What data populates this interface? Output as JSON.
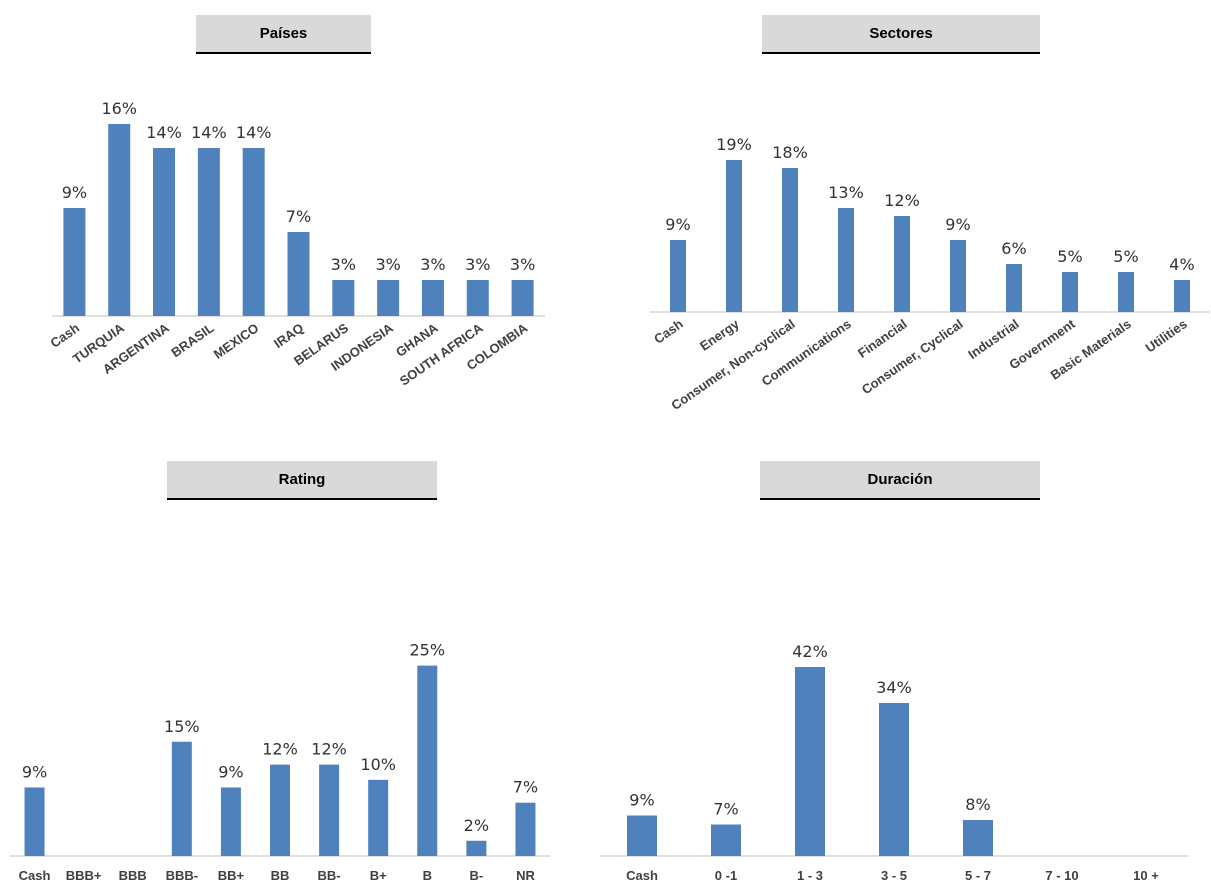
{
  "colors": {
    "bar": "#4f81bd",
    "axis": "#bfbfbf",
    "title_bg": "#d9d9d9"
  },
  "chart_data": [
    {
      "type": "bar",
      "title": "Países",
      "categories": [
        "Cash",
        "TURQUIA",
        "ARGENTINA",
        "BRASIL",
        "MEXICO",
        "IRAQ",
        "BELARUS",
        "INDONESIA",
        "GHANA",
        "SOUTH AFRICA",
        "COLOMBIA"
      ],
      "values": [
        9,
        16,
        14,
        14,
        14,
        7,
        3,
        3,
        3,
        3,
        3
      ],
      "labels": [
        "9%",
        "16%",
        "14%",
        "14%",
        "14%",
        "7%",
        "3%",
        "3%",
        "3%",
        "3%",
        "3%"
      ],
      "ylim": [
        0,
        17
      ],
      "grid": false,
      "legend": "none"
    },
    {
      "type": "bar",
      "title": "Sectores",
      "categories": [
        "Cash",
        "Energy",
        "Consumer, Non-cyclical",
        "Communications",
        "Financial",
        "Consumer, Cyclical",
        "Industrial",
        "Government",
        "Basic Materials",
        "Utilities"
      ],
      "values": [
        9,
        19,
        18,
        13,
        12,
        9,
        6,
        5,
        5,
        4
      ],
      "labels": [
        "9%",
        "19%",
        "18%",
        "13%",
        "12%",
        "9%",
        "6%",
        "5%",
        "5%",
        "4%"
      ],
      "ylim": [
        0,
        20
      ],
      "grid": false,
      "legend": "none"
    },
    {
      "type": "bar",
      "title": "Rating",
      "categories": [
        "Cash",
        "BBB+",
        "BBB",
        "BBB-",
        "BB+",
        "BB",
        "BB-",
        "B+",
        "B",
        "B-",
        "NR"
      ],
      "values": [
        9,
        0,
        0,
        15,
        9,
        12,
        12,
        10,
        25,
        2,
        7
      ],
      "labels": [
        "9%",
        "",
        "",
        "15%",
        "9%",
        "12%",
        "12%",
        "10%",
        "25%",
        "2%",
        "7%"
      ],
      "ylim": [
        0,
        26
      ],
      "grid": false,
      "legend": "none"
    },
    {
      "type": "bar",
      "title": "Duración",
      "categories": [
        "Cash",
        "0 -1",
        "1 - 3",
        "3 - 5",
        "5 - 7",
        "7 - 10",
        "10 +"
      ],
      "values": [
        9,
        7,
        42,
        34,
        8,
        0,
        0
      ],
      "labels": [
        "9%",
        "7%",
        "42%",
        "34%",
        "8%",
        "",
        ""
      ],
      "ylim": [
        0,
        44
      ],
      "grid": false,
      "legend": "none"
    }
  ]
}
